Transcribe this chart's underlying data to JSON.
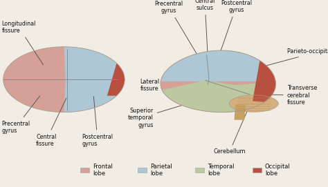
{
  "background_color": "#f2ede4",
  "legend_items": [
    {
      "label": "Frontal\nlobe",
      "color": "#d4a098"
    },
    {
      "label": "Parietal\nlobe",
      "color": "#adc8d4"
    },
    {
      "label": "Temporal\nlobe",
      "color": "#bcc8a0"
    },
    {
      "label": "Occipital\nlobe",
      "color": "#b85040"
    }
  ],
  "font_size_labels": 5.8,
  "font_size_legend": 6.0,
  "font_color": "#111111",
  "arrow_color": "#555555",
  "frontal_color": "#d4a098",
  "parietal_color": "#adc8d4",
  "temporal_color": "#bcc8a0",
  "occipital_color": "#b85040",
  "cerebellum_color": "#d4b080",
  "brainstem_color": "#c8a060",
  "line_color": "#888888"
}
